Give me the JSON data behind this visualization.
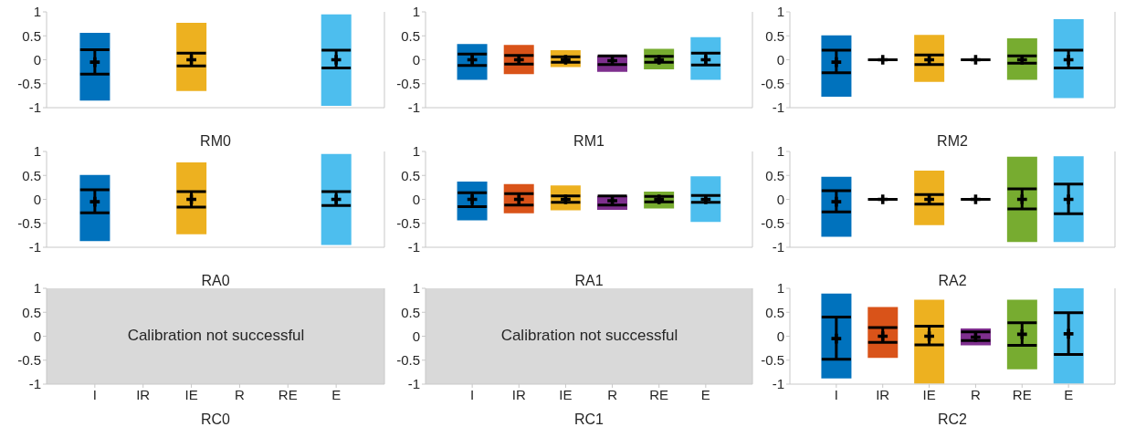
{
  "chart_data": [
    {
      "type": "bar",
      "xlabel": "RM0",
      "categories": [
        "I",
        "IR",
        "IE",
        "R",
        "RE",
        "E"
      ],
      "ylim": [
        -1,
        1
      ],
      "yticks": [
        -1,
        -0.5,
        0,
        0.5,
        1
      ],
      "tick_labels": "y",
      "series": [
        {
          "type": "bar",
          "base": [
            -0.85,
            null,
            -0.65,
            null,
            null,
            -0.96
          ],
          "values": [
            1.41,
            null,
            1.42,
            null,
            null,
            1.91
          ],
          "colors": [
            "#0072bd",
            "#d95319",
            "#edb120",
            "#7e2f8e",
            "#77ac30",
            "#4dbeee"
          ]
        },
        {
          "type": "scatter",
          "marker": "cross",
          "color": "#000000",
          "x": [
            "I",
            "IR",
            "IE",
            "R",
            "RE",
            "E"
          ],
          "values": [
            -0.05,
            null,
            0,
            null,
            null,
            0
          ],
          "errors": [
            [
              -0.3,
              0.21
            ],
            null,
            [
              -0.13,
              0.14
            ],
            null,
            null,
            [
              -0.17,
              0.2
            ]
          ]
        }
      ]
    },
    {
      "type": "bar",
      "xlabel": "RM1",
      "categories": [
        "I",
        "IR",
        "IE",
        "R",
        "RE",
        "E"
      ],
      "ylim": [
        -1,
        1
      ],
      "yticks": [
        -1,
        -0.5,
        0,
        0.5,
        1
      ],
      "tick_labels": "y",
      "series": [
        {
          "type": "bar",
          "base": [
            -0.42,
            -0.3,
            -0.15,
            -0.25,
            -0.2,
            -0.42
          ],
          "values": [
            0.75,
            0.61,
            0.35,
            0.33,
            0.43,
            0.89
          ],
          "colors": [
            "#0072bd",
            "#d95319",
            "#edb120",
            "#7e2f8e",
            "#77ac30",
            "#4dbeee"
          ]
        },
        {
          "type": "scatter",
          "marker": "cross",
          "color": "#000000",
          "x": [
            "I",
            "IR",
            "IE",
            "R",
            "RE",
            "E"
          ],
          "values": [
            0,
            0,
            0,
            -0.02,
            0,
            0
          ],
          "errors": [
            [
              -0.12,
              0.12
            ],
            [
              -0.09,
              0.09
            ],
            [
              -0.05,
              0.06
            ],
            [
              -0.1,
              0.08
            ],
            [
              -0.05,
              0.07
            ],
            [
              -0.11,
              0.14
            ]
          ]
        }
      ]
    },
    {
      "type": "bar",
      "xlabel": "RM2",
      "categories": [
        "I",
        "IR",
        "IE",
        "R",
        "RE",
        "E"
      ],
      "ylim": [
        -1,
        1
      ],
      "yticks": [
        -1,
        -0.5,
        0,
        0.5,
        1
      ],
      "tick_labels": "y",
      "series": [
        {
          "type": "bar",
          "base": [
            -0.77,
            null,
            -0.46,
            null,
            -0.42,
            -0.8
          ],
          "values": [
            1.28,
            null,
            0.98,
            null,
            0.87,
            1.65
          ],
          "colors": [
            "#0072bd",
            "#d95319",
            "#edb120",
            "#7e2f8e",
            "#77ac30",
            "#4dbeee"
          ]
        },
        {
          "type": "scatter",
          "marker": "cross",
          "color": "#000000",
          "x": [
            "I",
            "IR",
            "IE",
            "R",
            "RE",
            "E"
          ],
          "values": [
            -0.05,
            0,
            0,
            0,
            0,
            0
          ],
          "errors": [
            [
              -0.27,
              0.2
            ],
            [
              0,
              0
            ],
            [
              -0.1,
              0.1
            ],
            [
              0,
              0
            ],
            [
              -0.07,
              0.08
            ],
            [
              -0.17,
              0.2
            ]
          ]
        }
      ]
    },
    {
      "type": "bar",
      "xlabel": "RA0",
      "categories": [
        "I",
        "IR",
        "IE",
        "R",
        "RE",
        "E"
      ],
      "ylim": [
        -1,
        1
      ],
      "yticks": [
        -1,
        -0.5,
        0,
        0.5,
        1
      ],
      "tick_labels": "y",
      "series": [
        {
          "type": "bar",
          "base": [
            -0.87,
            null,
            -0.73,
            null,
            null,
            -0.95
          ],
          "values": [
            1.38,
            null,
            1.5,
            null,
            null,
            1.9
          ],
          "colors": [
            "#0072bd",
            "#d95319",
            "#edb120",
            "#7e2f8e",
            "#77ac30",
            "#4dbeee"
          ]
        },
        {
          "type": "scatter",
          "marker": "cross",
          "color": "#000000",
          "x": [
            "I",
            "IR",
            "IE",
            "R",
            "RE",
            "E"
          ],
          "values": [
            -0.05,
            null,
            0,
            null,
            null,
            0
          ],
          "errors": [
            [
              -0.28,
              0.2
            ],
            null,
            [
              -0.16,
              0.16
            ],
            null,
            null,
            [
              -0.13,
              0.16
            ]
          ]
        }
      ]
    },
    {
      "type": "bar",
      "xlabel": "RA1",
      "categories": [
        "I",
        "IR",
        "IE",
        "R",
        "RE",
        "E"
      ],
      "ylim": [
        -1,
        1
      ],
      "yticks": [
        -1,
        -0.5,
        0,
        0.5,
        1
      ],
      "tick_labels": "y",
      "series": [
        {
          "type": "bar",
          "base": [
            -0.44,
            -0.29,
            -0.23,
            -0.22,
            -0.19,
            -0.47
          ],
          "values": [
            0.81,
            0.61,
            0.52,
            0.29,
            0.35,
            0.95
          ],
          "colors": [
            "#0072bd",
            "#d95319",
            "#edb120",
            "#7e2f8e",
            "#77ac30",
            "#4dbeee"
          ]
        },
        {
          "type": "scatter",
          "marker": "cross",
          "color": "#000000",
          "x": [
            "I",
            "IR",
            "IE",
            "R",
            "RE",
            "E"
          ],
          "values": [
            0,
            0,
            0,
            -0.03,
            0,
            0
          ],
          "errors": [
            [
              -0.15,
              0.14
            ],
            [
              -0.12,
              0.12
            ],
            [
              -0.06,
              0.07
            ],
            [
              -0.12,
              0.07
            ],
            [
              -0.05,
              0.06
            ],
            [
              -0.06,
              0.08
            ]
          ]
        }
      ]
    },
    {
      "type": "bar",
      "xlabel": "RA2",
      "categories": [
        "I",
        "IR",
        "IE",
        "R",
        "RE",
        "E"
      ],
      "ylim": [
        -1,
        1
      ],
      "yticks": [
        -1,
        -0.5,
        0,
        0.5,
        1
      ],
      "tick_labels": "y",
      "series": [
        {
          "type": "bar",
          "base": [
            -0.78,
            null,
            -0.54,
            null,
            -0.89,
            -0.89
          ],
          "values": [
            1.25,
            null,
            1.14,
            null,
            1.78,
            1.79
          ],
          "colors": [
            "#0072bd",
            "#d95319",
            "#edb120",
            "#7e2f8e",
            "#77ac30",
            "#4dbeee"
          ]
        },
        {
          "type": "scatter",
          "marker": "cross",
          "color": "#000000",
          "x": [
            "I",
            "IR",
            "IE",
            "R",
            "RE",
            "E"
          ],
          "values": [
            -0.05,
            0,
            0,
            0,
            0,
            0
          ],
          "errors": [
            [
              -0.26,
              0.18
            ],
            [
              0,
              0
            ],
            [
              -0.1,
              0.1
            ],
            [
              0,
              0
            ],
            [
              -0.2,
              0.22
            ],
            [
              -0.3,
              0.32
            ]
          ]
        }
      ]
    },
    {
      "type": "bar",
      "xlabel": "RC0",
      "categories": [
        "I",
        "IR",
        "IE",
        "R",
        "RE",
        "E"
      ],
      "ylim": [
        -1,
        1
      ],
      "yticks": [
        -1,
        -0.5,
        0,
        0.5,
        1
      ],
      "annotations": [
        "Calibration not successful"
      ],
      "bands": [
        {
          "axis": "y",
          "from": -1,
          "to": 1,
          "color": "#d9d9d9"
        }
      ]
    },
    {
      "type": "bar",
      "xlabel": "RC1",
      "categories": [
        "I",
        "IR",
        "IE",
        "R",
        "RE",
        "E"
      ],
      "ylim": [
        -1,
        1
      ],
      "yticks": [
        -1,
        -0.5,
        0,
        0.5,
        1
      ],
      "annotations": [
        "Calibration not successful"
      ],
      "bands": [
        {
          "axis": "y",
          "from": -1,
          "to": 1,
          "color": "#d9d9d9"
        }
      ]
    },
    {
      "type": "bar",
      "xlabel": "RC2",
      "categories": [
        "I",
        "IR",
        "IE",
        "R",
        "RE",
        "E"
      ],
      "ylim": [
        -1,
        1
      ],
      "yticks": [
        -1,
        -0.5,
        0,
        0.5,
        1
      ],
      "series": [
        {
          "type": "bar",
          "base": [
            -0.88,
            -0.45,
            -0.99,
            -0.19,
            -0.69,
            -0.99
          ],
          "values": [
            1.77,
            1.06,
            1.75,
            0.35,
            1.45,
            1.99
          ],
          "colors": [
            "#0072bd",
            "#d95319",
            "#edb120",
            "#7e2f8e",
            "#77ac30",
            "#4dbeee"
          ]
        },
        {
          "type": "scatter",
          "marker": "cross",
          "color": "#000000",
          "x": [
            "I",
            "IR",
            "IE",
            "R",
            "RE",
            "E"
          ],
          "values": [
            -0.05,
            0,
            0,
            -0.02,
            0.04,
            0.05
          ],
          "errors": [
            [
              -0.48,
              0.4
            ],
            [
              -0.13,
              0.18
            ],
            [
              -0.18,
              0.21
            ],
            [
              -0.09,
              0.09
            ],
            [
              -0.19,
              0.28
            ],
            [
              -0.38,
              0.49
            ]
          ]
        }
      ]
    }
  ]
}
